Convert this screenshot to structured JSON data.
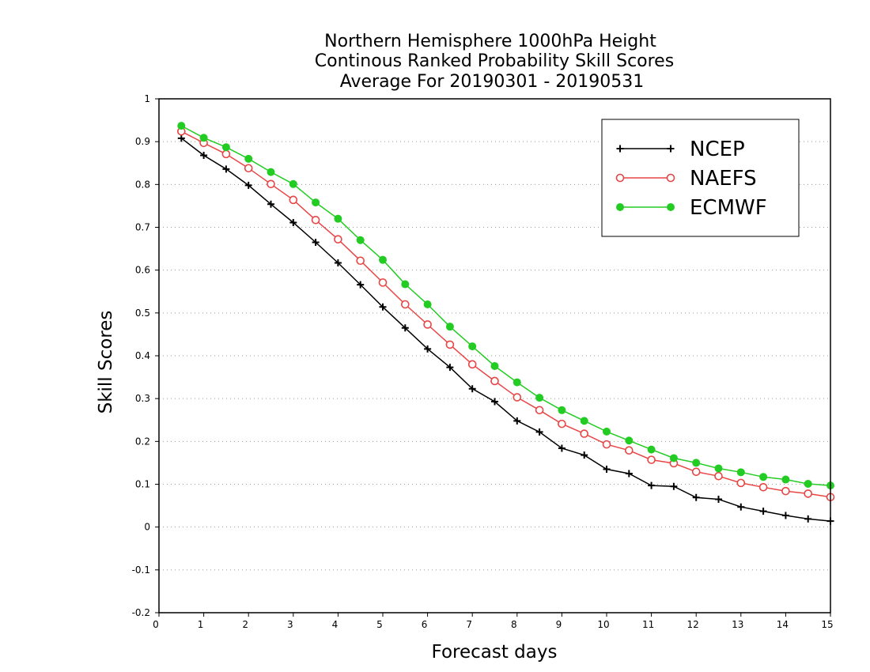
{
  "chart_data": {
    "type": "line",
    "title": [
      "Northern Hemisphere 1000hPa Height",
      "Continous Ranked Probability Skill Scores",
      "Average For 20190301 - 20190531"
    ],
    "xlabel": "Forecast days",
    "ylabel": "Skill Scores",
    "xlim": [
      0,
      15
    ],
    "ylim": [
      -0.2,
      1
    ],
    "xticks": [
      "0",
      "1",
      "2",
      "3",
      "4",
      "5",
      "6",
      "7",
      "8",
      "9",
      "10",
      "11",
      "12",
      "13",
      "14",
      "15"
    ],
    "yticks": [
      "-0.2",
      "-0.1",
      "0",
      "0.1",
      "0.2",
      "0.3",
      "0.4",
      "0.5",
      "0.6",
      "0.7",
      "0.8",
      "0.9",
      "1"
    ],
    "grid": "horizontal dotted",
    "legend_position": "top-right",
    "x": [
      0.5,
      1,
      1.5,
      2,
      2.5,
      3,
      3.5,
      4,
      4.5,
      5,
      5.5,
      6,
      6.5,
      7,
      7.5,
      8,
      8.5,
      9,
      9.5,
      10,
      10.5,
      11,
      11.5,
      12,
      12.5,
      13,
      13.5,
      14,
      14.5,
      15
    ],
    "series": [
      {
        "name": "NCEP",
        "color": "#000000",
        "marker": "plus",
        "values": [
          0.908,
          0.868,
          0.836,
          0.798,
          0.754,
          0.711,
          0.665,
          0.617,
          0.566,
          0.514,
          0.465,
          0.416,
          0.373,
          0.323,
          0.293,
          0.248,
          0.222,
          0.184,
          0.168,
          0.135,
          0.125,
          0.097,
          0.095,
          0.069,
          0.065,
          0.047,
          0.037,
          0.027,
          0.019,
          0.014
        ]
      },
      {
        "name": "NAEFS",
        "color": "#e84545",
        "marker": "open-circle",
        "values": [
          0.924,
          0.897,
          0.871,
          0.838,
          0.801,
          0.764,
          0.717,
          0.672,
          0.622,
          0.571,
          0.52,
          0.473,
          0.426,
          0.38,
          0.341,
          0.303,
          0.273,
          0.241,
          0.218,
          0.193,
          0.179,
          0.157,
          0.149,
          0.129,
          0.119,
          0.103,
          0.093,
          0.084,
          0.078,
          0.07
        ]
      },
      {
        "name": "ECMWF",
        "color": "#22cc22",
        "marker": "filled-circle",
        "values": [
          0.937,
          0.909,
          0.887,
          0.86,
          0.829,
          0.801,
          0.758,
          0.72,
          0.67,
          0.624,
          0.567,
          0.52,
          0.468,
          0.422,
          0.376,
          0.338,
          0.302,
          0.273,
          0.248,
          0.223,
          0.202,
          0.181,
          0.161,
          0.15,
          0.137,
          0.128,
          0.117,
          0.111,
          0.101,
          0.097
        ]
      }
    ]
  }
}
